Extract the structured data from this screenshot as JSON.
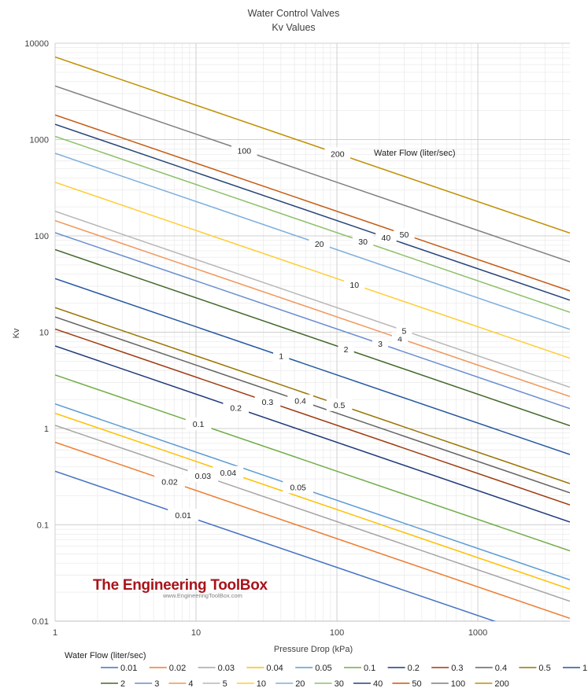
{
  "chart_data": {
    "type": "line",
    "title": "Water Control Valves",
    "subtitle": "Kv Values",
    "xlabel": "Pressure Drop (kPa)",
    "ylabel": "Kv",
    "x_scale": "log",
    "y_scale": "log",
    "xlim": [
      1,
      4500
    ],
    "ylim": [
      0.01,
      10000
    ],
    "x_ticks": [
      "1",
      "10",
      "100",
      "1000"
    ],
    "y_ticks": [
      "0.01",
      "0.1",
      "1",
      "10",
      "100",
      "1000",
      "10000"
    ],
    "grid": true,
    "legend_title": "Water Flow (liter/sec)",
    "legend_position": "bottom",
    "annotation": "Water Flow (liter/sec)",
    "x": [
      1,
      4500
    ],
    "series": [
      {
        "name": "0.01",
        "color": "#4472C4",
        "values": [
          0.36,
          0.0054
        ]
      },
      {
        "name": "0.02",
        "color": "#ED7D31",
        "values": [
          0.72,
          0.0107
        ]
      },
      {
        "name": "0.03",
        "color": "#A5A5A5",
        "values": [
          1.08,
          0.0161
        ]
      },
      {
        "name": "0.04",
        "color": "#FFC000",
        "values": [
          1.44,
          0.0215
        ]
      },
      {
        "name": "0.05",
        "color": "#5B9BD5",
        "values": [
          1.8,
          0.0268
        ]
      },
      {
        "name": "0.1",
        "color": "#70AD47",
        "values": [
          3.6,
          0.0537
        ]
      },
      {
        "name": "0.2",
        "color": "#1F3A7A",
        "values": [
          7.2,
          0.107
        ]
      },
      {
        "name": "0.3",
        "color": "#9E3A0E",
        "values": [
          10.8,
          0.161
        ]
      },
      {
        "name": "0.4",
        "color": "#636363",
        "values": [
          14.4,
          0.215
        ]
      },
      {
        "name": "0.5",
        "color": "#997300",
        "values": [
          18,
          0.268
        ]
      },
      {
        "name": "1",
        "color": "#2457A0",
        "values": [
          36,
          0.537
        ]
      },
      {
        "name": "2",
        "color": "#43682B",
        "values": [
          72,
          1.07
        ]
      },
      {
        "name": "3",
        "color": "#698ED0",
        "values": [
          108,
          1.61
        ]
      },
      {
        "name": "4",
        "color": "#F1975A",
        "values": [
          144,
          2.15
        ]
      },
      {
        "name": "5",
        "color": "#B7B7B7",
        "values": [
          180,
          2.68
        ]
      },
      {
        "name": "10",
        "color": "#FFCD33",
        "values": [
          360,
          5.37
        ]
      },
      {
        "name": "20",
        "color": "#7CAFDD",
        "values": [
          720,
          10.7
        ]
      },
      {
        "name": "30",
        "color": "#8CC168",
        "values": [
          1080,
          16.1
        ]
      },
      {
        "name": "40",
        "color": "#264478",
        "values": [
          1440,
          21.5
        ]
      },
      {
        "name": "50",
        "color": "#C55A11",
        "values": [
          1800,
          26.8
        ]
      },
      {
        "name": "100",
        "color": "#7F7F7F",
        "values": [
          3600,
          53.7
        ]
      },
      {
        "name": "200",
        "color": "#BF9000",
        "values": [
          7200,
          107
        ]
      }
    ],
    "line_labels": [
      {
        "text": "0.01",
        "x": 8.1
      },
      {
        "text": "0.02",
        "x": 6.5
      },
      {
        "text": "0.03",
        "x": 11.2
      },
      {
        "text": "0.04",
        "x": 16.9
      },
      {
        "text": "0.05",
        "x": 53
      },
      {
        "text": "0.1",
        "x": 10.4
      },
      {
        "text": "0.2",
        "x": 19.2
      },
      {
        "text": "0.3",
        "x": 32.2
      },
      {
        "text": "0.4",
        "x": 55
      },
      {
        "text": "0.5",
        "x": 104
      },
      {
        "text": "1",
        "x": 40.2
      },
      {
        "text": "2",
        "x": 116
      },
      {
        "text": "3",
        "x": 203
      },
      {
        "text": "4",
        "x": 280
      },
      {
        "text": "5",
        "x": 300
      },
      {
        "text": "10",
        "x": 133
      },
      {
        "text": "20",
        "x": 75
      },
      {
        "text": "30",
        "x": 153
      },
      {
        "text": "40",
        "x": 223
      },
      {
        "text": "50",
        "x": 300
      },
      {
        "text": "100",
        "x": 22
      },
      {
        "text": "200",
        "x": 101
      }
    ]
  },
  "watermark": {
    "title": "The Engineering ToolBox",
    "url": "www.EngineeringToolBox.com",
    "color": "#A8131A"
  }
}
